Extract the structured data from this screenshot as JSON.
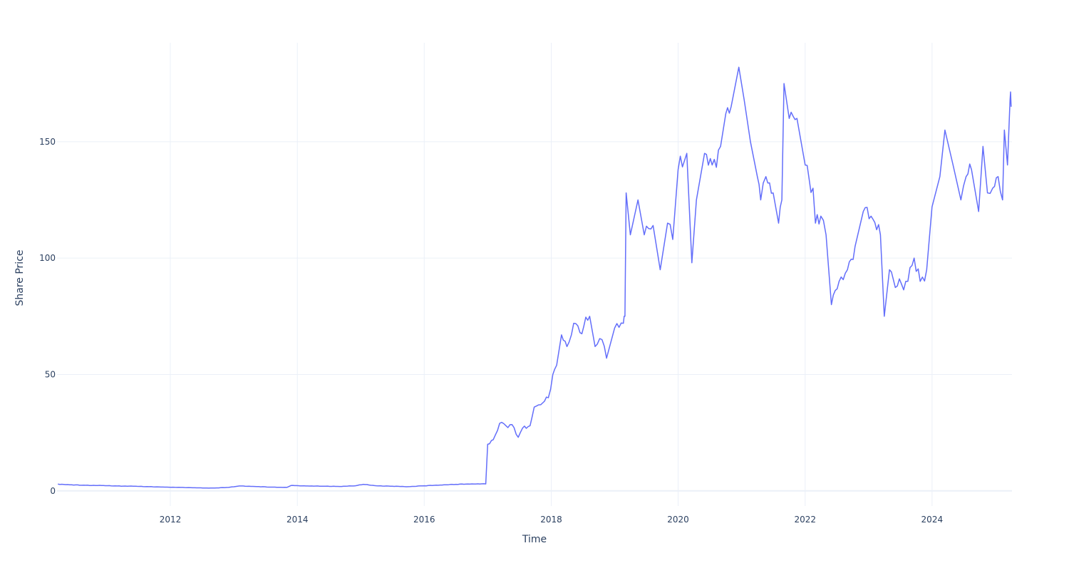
{
  "chart_data": {
    "type": "line",
    "title": "",
    "xlabel": "Time",
    "ylabel": "Share Price",
    "xlim": [
      "2010-03-20",
      "2025-04-05"
    ],
    "ylim": [
      -6.5,
      192.5
    ],
    "grid": true,
    "legend": "none",
    "x_ticks": [
      "2012",
      "2014",
      "2016",
      "2018",
      "2020",
      "2022",
      "2024"
    ],
    "y_ticks": [
      0,
      50,
      100,
      150
    ],
    "y_tick_labels": [
      "0",
      "50",
      "100",
      "150"
    ],
    "series": [
      {
        "color": "#636efa",
        "points": [
          [
            "2010-03-25",
            2.9
          ],
          [
            "2010-06-01",
            2.6
          ],
          [
            "2010-09-01",
            2.4
          ],
          [
            "2010-12-01",
            2.3
          ],
          [
            "2011-03-01",
            2.1
          ],
          [
            "2011-06-01",
            2.0
          ],
          [
            "2011-09-01",
            1.8
          ],
          [
            "2011-12-01",
            1.6
          ],
          [
            "2012-03-01",
            1.5
          ],
          [
            "2012-06-01",
            1.3
          ],
          [
            "2012-09-01",
            1.2
          ],
          [
            "2012-12-01",
            1.5
          ],
          [
            "2013-02-01",
            2.1
          ],
          [
            "2013-05-01",
            1.9
          ],
          [
            "2013-08-01",
            1.6
          ],
          [
            "2013-11-01",
            1.5
          ],
          [
            "2013-11-25",
            2.3
          ],
          [
            "2014-03-01",
            2.1
          ],
          [
            "2014-06-01",
            2.0
          ],
          [
            "2014-09-01",
            1.9
          ],
          [
            "2014-12-01",
            2.2
          ],
          [
            "2015-01-15",
            2.8
          ],
          [
            "2015-04-01",
            2.2
          ],
          [
            "2015-07-01",
            2.0
          ],
          [
            "2015-10-01",
            1.8
          ],
          [
            "2016-01-01",
            2.2
          ],
          [
            "2016-04-01",
            2.5
          ],
          [
            "2016-07-01",
            2.8
          ],
          [
            "2016-10-01",
            3.0
          ],
          [
            "2016-12-20",
            3.0
          ],
          [
            "2016-12-31",
            20.0
          ],
          [
            "2017-02-01",
            22.0
          ],
          [
            "2017-03-10",
            29.0
          ],
          [
            "2017-04-15",
            28.0
          ],
          [
            "2017-05-20",
            28.5
          ],
          [
            "2017-06-25",
            23.0
          ],
          [
            "2017-07-20",
            27.0
          ],
          [
            "2017-09-01",
            28.0
          ],
          [
            "2017-09-25",
            36.0
          ],
          [
            "2017-11-01",
            37.0
          ],
          [
            "2017-12-15",
            40.0
          ],
          [
            "2018-01-10",
            50.0
          ],
          [
            "2018-02-01",
            54.0
          ],
          [
            "2018-03-01",
            67.0
          ],
          [
            "2018-04-01",
            62.0
          ],
          [
            "2018-05-10",
            72.0
          ],
          [
            "2018-06-15",
            68.0
          ],
          [
            "2018-08-10",
            75.0
          ],
          [
            "2018-09-10",
            62.0
          ],
          [
            "2018-10-20",
            65.0
          ],
          [
            "2018-11-15",
            57.0
          ],
          [
            "2019-01-01",
            70.0
          ],
          [
            "2019-02-20",
            72.0
          ],
          [
            "2019-03-01",
            75.0
          ],
          [
            "2019-03-08",
            128.0
          ],
          [
            "2019-04-01",
            110.0
          ],
          [
            "2019-05-15",
            125.0
          ],
          [
            "2019-06-20",
            110.0
          ],
          [
            "2019-08-10",
            114.0
          ],
          [
            "2019-09-20",
            95.0
          ],
          [
            "2019-11-01",
            115.0
          ],
          [
            "2019-12-01",
            108.0
          ],
          [
            "2020-01-01",
            138.0
          ],
          [
            "2020-02-20",
            145.0
          ],
          [
            "2020-03-20",
            98.0
          ],
          [
            "2020-04-15",
            125.0
          ],
          [
            "2020-06-01",
            145.0
          ],
          [
            "2020-07-15",
            140.0
          ],
          [
            "2020-09-01",
            148.0
          ],
          [
            "2020-10-01",
            162.0
          ],
          [
            "2020-11-01",
            165.0
          ],
          [
            "2020-12-15",
            182.0
          ],
          [
            "2021-01-15",
            168.0
          ],
          [
            "2021-02-20",
            150.0
          ],
          [
            "2021-04-01",
            135.0
          ],
          [
            "2021-04-20",
            125.0
          ],
          [
            "2021-05-20",
            135.0
          ],
          [
            "2021-07-01",
            128.0
          ],
          [
            "2021-08-01",
            115.0
          ],
          [
            "2021-08-20",
            125.0
          ],
          [
            "2021-09-01",
            175.0
          ],
          [
            "2021-10-01",
            160.0
          ],
          [
            "2021-11-15",
            160.0
          ],
          [
            "2022-01-01",
            140.0
          ],
          [
            "2022-02-15",
            130.0
          ],
          [
            "2022-03-01",
            115.0
          ],
          [
            "2022-04-01",
            118.0
          ],
          [
            "2022-05-01",
            110.0
          ],
          [
            "2022-06-01",
            80.0
          ],
          [
            "2022-07-15",
            90.0
          ],
          [
            "2022-09-01",
            95.0
          ],
          [
            "2022-10-15",
            105.0
          ],
          [
            "2022-12-01",
            120.0
          ],
          [
            "2023-01-15",
            118.0
          ],
          [
            "2023-03-10",
            110.0
          ],
          [
            "2023-04-01",
            75.0
          ],
          [
            "2023-05-01",
            95.0
          ],
          [
            "2023-06-15",
            88.0
          ],
          [
            "2023-08-15",
            90.0
          ],
          [
            "2023-09-20",
            100.0
          ],
          [
            "2023-10-25",
            90.0
          ],
          [
            "2023-12-01",
            95.0
          ],
          [
            "2024-01-01",
            122.0
          ],
          [
            "2024-02-15",
            135.0
          ],
          [
            "2024-03-15",
            155.0
          ],
          [
            "2024-05-01",
            140.0
          ],
          [
            "2024-06-15",
            125.0
          ],
          [
            "2024-07-15",
            135.0
          ],
          [
            "2024-08-15",
            138.0
          ],
          [
            "2024-09-25",
            120.0
          ],
          [
            "2024-10-20",
            148.0
          ],
          [
            "2024-11-15",
            128.0
          ],
          [
            "2024-12-15",
            130.0
          ],
          [
            "2025-01-15",
            135.0
          ],
          [
            "2025-02-10",
            125.0
          ],
          [
            "2025-02-20",
            155.0
          ],
          [
            "2025-03-10",
            140.0
          ],
          [
            "2025-03-25",
            168.0
          ],
          [
            "2025-03-31",
            165.0
          ]
        ]
      }
    ]
  }
}
